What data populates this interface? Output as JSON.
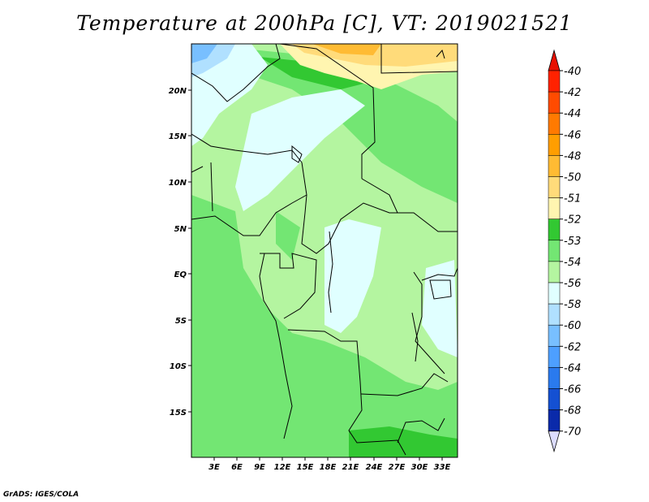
{
  "title": "Temperature at 200hPa [C], VT: 2019021521",
  "credit": "GrADS: IGES/COLA",
  "map": {
    "lon_labels": [
      "3E",
      "6E",
      "9E",
      "12E",
      "15E",
      "18E",
      "21E",
      "24E",
      "27E",
      "30E",
      "33E"
    ],
    "lat_labels": [
      "20N",
      "15N",
      "10N",
      "5N",
      "EQ",
      "5S",
      "10S",
      "15S"
    ]
  },
  "colorbar": {
    "levels": [
      "-40",
      "-42",
      "-44",
      "-46",
      "-48",
      "-50",
      "-51",
      "-52",
      "-53",
      "-54",
      "-56",
      "-58",
      "-60",
      "-62",
      "-64",
      "-66",
      "-68",
      "-70"
    ],
    "colors": [
      "#ff2200",
      "#ff4b00",
      "#ff7a00",
      "#ff9e00",
      "#ffbb33",
      "#ffdb7a",
      "#fff5b0",
      "#32c832",
      "#73e673",
      "#b4f5a0",
      "#e0ffff",
      "#b0e0ff",
      "#78bfff",
      "#4d9fff",
      "#2a7aee",
      "#1450d2",
      "#0a2aaa",
      "#06006e"
    ],
    "top_arrow": "#e81000",
    "bottom_arrow": "#dcdcff"
  }
}
